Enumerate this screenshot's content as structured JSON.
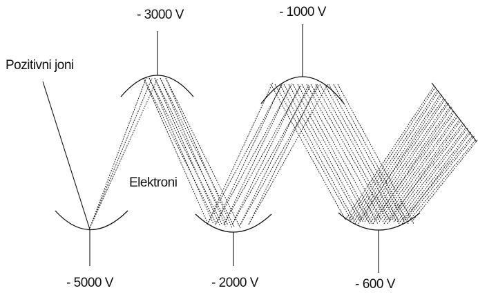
{
  "labels": {
    "ions": "Pozitivni joni",
    "electrons": "Elektroni",
    "dynode_1": "- 5000 V",
    "dynode_2": "- 3000 V",
    "dynode_3": "- 2000 V",
    "dynode_4": "- 1000 V",
    "dynode_5": "- 600 V"
  }
}
